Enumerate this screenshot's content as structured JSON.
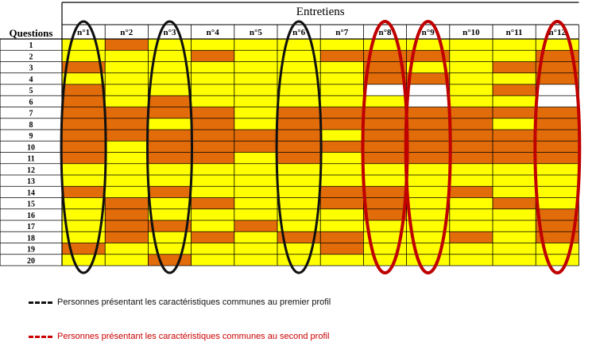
{
  "chart_data": {
    "type": "heatmap",
    "title": "Entretiens",
    "row_header": "Questions",
    "columns": [
      "n°1",
      "n°2",
      "n°3",
      "n°4",
      "n°5",
      "n°6",
      "n°7",
      "n°8",
      "n°9",
      "n°10",
      "n°11",
      "n°12"
    ],
    "rows": [
      "1",
      "2",
      "3",
      "4",
      "5",
      "6",
      "7",
      "8",
      "9",
      "10",
      "11",
      "12",
      "13",
      "14",
      "15",
      "16",
      "17",
      "18",
      "19",
      "20"
    ],
    "legend_codes": {
      "Y": "#ffff00",
      "O": "#e26b0a",
      "W": "#ffffff"
    },
    "cells": [
      "YOYYYYYYYYYY",
      "YYYOYYOOOYYO",
      "OYYYYYYOYYOO",
      "YYYYYYYOOYYO",
      "OYYYYYYWWYOW",
      "OYOYYYYYWYYW",
      "OOOOYOOOOOOO",
      "OOYOYOOOOOYO",
      "OOOOOOYOOOOO",
      "OYOOOOOOOOOO",
      "OYOOYOYOOOOO",
      "YYYYYYYYYYYY",
      "YYYYYYYYYYYY",
      "OYOYYYOOYOYY",
      "YOYOYYOOYYOY",
      "YOYYYYYOYYYO",
      "YOOYOYYYYYYO",
      "YOYOYOOYYOYO",
      "OYYYYYOYYYYY",
      "YYOYYYYYYYYY"
    ],
    "highlights": [
      {
        "profile": "first",
        "color": "#111111",
        "columns": [
          1,
          3,
          6
        ]
      },
      {
        "profile": "second",
        "color": "#c00000",
        "columns": [
          8,
          9,
          12
        ]
      }
    ]
  },
  "legend": {
    "first": "Personnes présentant les caractéristiques communes au premier profil",
    "second": "Personnes présentant les caractéristiques communes au second profil"
  }
}
